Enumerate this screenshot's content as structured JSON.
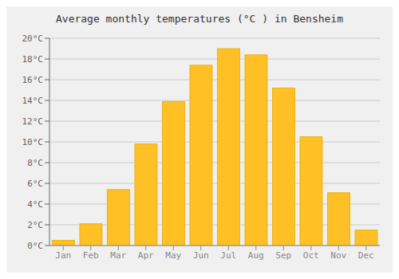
{
  "chart_data": {
    "type": "bar",
    "title": "Average monthly temperatures (°C ) in Bensheim",
    "categories": [
      "Jan",
      "Feb",
      "Mar",
      "Apr",
      "May",
      "Jun",
      "Jul",
      "Aug",
      "Sep",
      "Oct",
      "Nov",
      "Dec"
    ],
    "values": [
      0.5,
      2.1,
      5.4,
      9.8,
      13.9,
      17.4,
      19.0,
      18.4,
      15.2,
      10.5,
      5.1,
      1.5
    ],
    "color": "#FFC025",
    "ylim": [
      0,
      20
    ],
    "yticks": [
      {
        "value": 0,
        "label": "0°C"
      },
      {
        "value": 2,
        "label": "2°C"
      },
      {
        "value": 4,
        "label": "4°C"
      },
      {
        "value": 6,
        "label": "6°C"
      },
      {
        "value": 8,
        "label": "8°C"
      },
      {
        "value": 10,
        "label": "10°C"
      },
      {
        "value": 12,
        "label": "12°C"
      },
      {
        "value": 14,
        "label": "14°C"
      },
      {
        "value": 16,
        "label": "16°C"
      },
      {
        "value": 18,
        "label": "18°C"
      },
      {
        "value": 20,
        "label": "20°C"
      }
    ],
    "grid": true
  }
}
